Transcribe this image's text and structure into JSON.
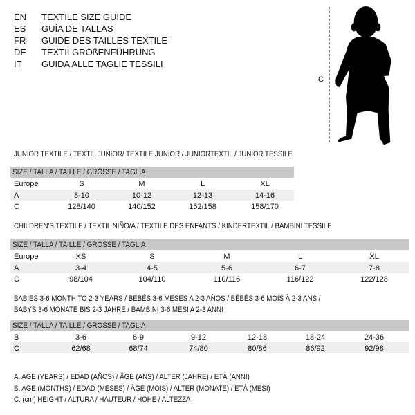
{
  "languages": [
    {
      "code": "EN",
      "title": "TEXTILE SIZE GUIDE"
    },
    {
      "code": "ES",
      "title": "GUÍA DE TALLAS"
    },
    {
      "code": "FR",
      "title": "GUIDE DES TAILLES TEXTILE"
    },
    {
      "code": "DE",
      "title": "TEXTILGRÖßENFÜHRUNG"
    },
    {
      "code": "IT",
      "title": "GUIDA ALLE TAGLIE TESSILI"
    }
  ],
  "figure": {
    "measure_label": "C",
    "icon": "baby-silhouette"
  },
  "junior": {
    "title": "JUNIOR TEXTILE / TEXTIL JUNIOR/ TEXTILE JUNIOR / JUNIORTEXTIL / JUNIOR TESSILE",
    "header": "SIZE / TALLA / TAILLE / GRÖSSE / TAGLIA",
    "rows": [
      {
        "label": "Europe",
        "values": [
          "S",
          "M",
          "L",
          "XL"
        ]
      },
      {
        "label": "A",
        "values": [
          "8-10",
          "10-12",
          "12-13",
          "14-16"
        ]
      },
      {
        "label": "C",
        "values": [
          "128/140",
          "140/152",
          "152/158",
          "158/170"
        ]
      }
    ]
  },
  "children": {
    "title": "CHILDREN'S TEXTILE / TEXTIL NIÑO/A / TEXTILE DES ENFANTS / KINDERTEXTIL / BAMBINI TESSILE",
    "header": "SIZE / TALLA / TAILLE / GRÖSSE / TAGLIA",
    "rows": [
      {
        "label": "Europe",
        "values": [
          "XS",
          "S",
          "M",
          "L",
          "XL"
        ]
      },
      {
        "label": "A",
        "values": [
          "3-4",
          "4-5",
          "5-6",
          "6-7",
          "7-8"
        ]
      },
      {
        "label": "C",
        "values": [
          "98/104",
          "104/110",
          "110/116",
          "116/122",
          "122/128"
        ]
      }
    ]
  },
  "babies": {
    "title_line1": "BABIES 3-6 MONTH TO 2-3 YEARS / BEBÉS 3-6 MESES A 2-3 AÑOS / BÉBÉS 3-6 MOIS À 2-3 ANS /",
    "title_line2": "BABYS 3-6 MONATE BIS 2-3 JAHRE / BAMBINI 3-6 MESI A 2-3 ANNI",
    "header": "SIZE / TALLA / TAILLE / GRÖSSE / TAGLIA",
    "rows": [
      {
        "label": "B",
        "values": [
          "3-6",
          "6-9",
          "9-12",
          "12-18",
          "18-24",
          "24-36"
        ]
      },
      {
        "label": "C",
        "values": [
          "62/68",
          "68/74",
          "74/80",
          "80/86",
          "86/92",
          "92/98"
        ]
      }
    ]
  },
  "legend": [
    "A. AGE (YEARS) / EDAD (AÑOS) / ÂGE (ANS) / ALTER (JAHRE) / ETÀ (ANNI)",
    "B. AGE (MONTHS) / EDAD (MESES) / ÂGE (MOIS) / ALTER (MONATE) / ETÀ (MESI)",
    "C. (cm) HEIGHT / ALTURA / HAUTEUR / HÖHE / ALTEZZA"
  ]
}
